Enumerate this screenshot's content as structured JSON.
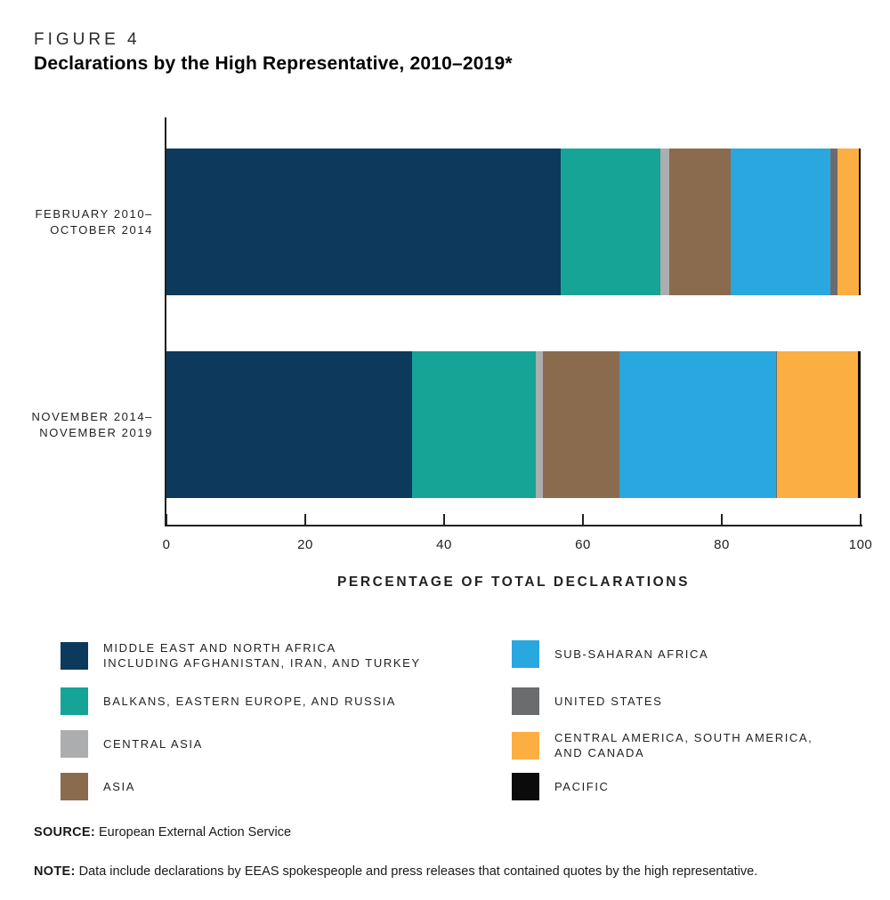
{
  "figure": {
    "label": "FIGURE 4",
    "title": "Declarations by the High Representative, 2010–2019*"
  },
  "chart_data": {
    "type": "bar",
    "orientation": "horizontal",
    "stacked": true,
    "xlabel": "PERCENTAGE OF TOTAL DECLARATIONS",
    "xlim": [
      0,
      100
    ],
    "x_ticks": [
      0,
      20,
      40,
      60,
      80,
      100
    ],
    "grid": false,
    "legend_position": "bottom",
    "categories": [
      {
        "line1": "FEBRUARY 2010–",
        "line2": "OCTOBER 2014"
      },
      {
        "line1": "NOVEMBER 2014–",
        "line2": "NOVEMBER 2019"
      }
    ],
    "series": [
      {
        "name": "MIDDLE EAST AND NORTH AFRICA INCLUDING AFGHANISTAN, IRAN, AND TURKEY",
        "color": "#0d3a5c",
        "values": [
          56.8,
          35.4
        ]
      },
      {
        "name": "BALKANS, EASTERN EUROPE, AND RUSSIA",
        "color": "#16a497",
        "values": [
          14.4,
          17.8
        ]
      },
      {
        "name": "CENTRAL ASIA",
        "color": "#abadaf",
        "values": [
          1.2,
          1.0
        ]
      },
      {
        "name": "ASIA",
        "color": "#8b6b4e",
        "values": [
          8.9,
          11.1
        ]
      },
      {
        "name": "SUB-SAHARAN AFRICA",
        "color": "#29a7df",
        "values": [
          14.4,
          22.5
        ]
      },
      {
        "name": "UNITED STATES",
        "color": "#6b6c6e",
        "values": [
          1.0,
          0.2
        ]
      },
      {
        "name": "CENTRAL AMERICA, SOUTH AMERICA, AND CANADA",
        "color": "#fbae42",
        "values": [
          3.0,
          11.6
        ]
      },
      {
        "name": "PACIFIC",
        "color": "#0b0b0b",
        "values": [
          0.3,
          0.4
        ]
      }
    ]
  },
  "legend": {
    "columns": [
      [
        {
          "lines": [
            "MIDDLE EAST AND NORTH AFRICA",
            "INCLUDING AFGHANISTAN, IRAN, AND TURKEY"
          ],
          "color": "#0d3a5c"
        },
        {
          "lines": [
            "BALKANS, EASTERN EUROPE, AND RUSSIA"
          ],
          "color": "#16a497"
        },
        {
          "lines": [
            "CENTRAL ASIA"
          ],
          "color": "#abadaf"
        },
        {
          "lines": [
            "ASIA"
          ],
          "color": "#8b6b4e"
        }
      ],
      [
        {
          "lines": [
            "SUB-SAHARAN AFRICA"
          ],
          "color": "#29a7df"
        },
        {
          "lines": [
            "UNITED STATES"
          ],
          "color": "#6b6c6e"
        },
        {
          "lines": [
            "CENTRAL AMERICA, SOUTH AMERICA,",
            "AND CANADA"
          ],
          "color": "#fbae42"
        },
        {
          "lines": [
            "PACIFIC"
          ],
          "color": "#0b0b0b"
        }
      ]
    ]
  },
  "footer": {
    "source_label": "SOURCE:",
    "source_text": "European External Action Service",
    "note_label": "NOTE:",
    "note_text": "Data include declarations by EEAS spokespeople and press releases that contained quotes by the high representative."
  }
}
